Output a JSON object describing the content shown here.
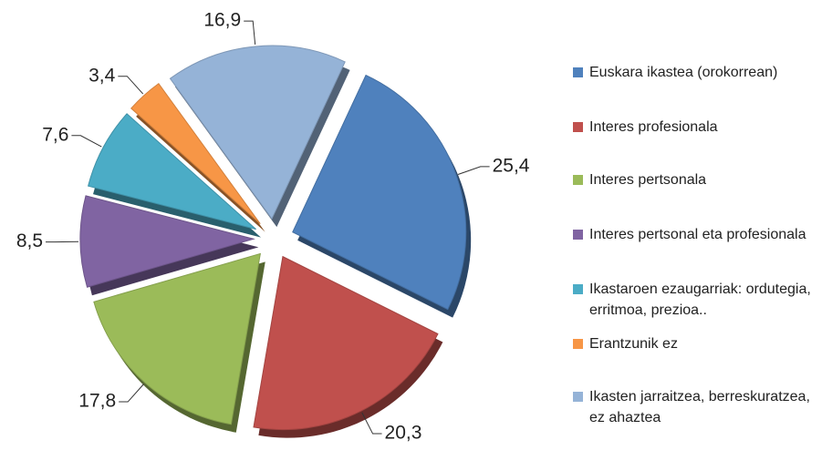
{
  "chart_data": {
    "type": "pie",
    "categories": [
      "Euskara ikastea (orokorrean)",
      "Interes profesionala",
      "Interes pertsonala",
      "Interes pertsonal eta profesionala",
      "Ikastaroen ezaugarriak: ordutegia, erritmoa, prezioa..",
      "Erantzunik ez",
      "Ikasten jarraitzea, berreskuratzea, ez ahaztea"
    ],
    "values": [
      25.4,
      20.3,
      17.8,
      8.5,
      7.6,
      3.4,
      16.9
    ],
    "value_labels": [
      "25,4",
      "20,3",
      "17,8",
      "8,5",
      "7,6",
      "3,4",
      "16,9"
    ],
    "colors": [
      "#4f81bd",
      "#c0504d",
      "#9bbb59",
      "#8064a2",
      "#4bacc6",
      "#f79646",
      "#95b3d7"
    ],
    "legend": "right"
  }
}
